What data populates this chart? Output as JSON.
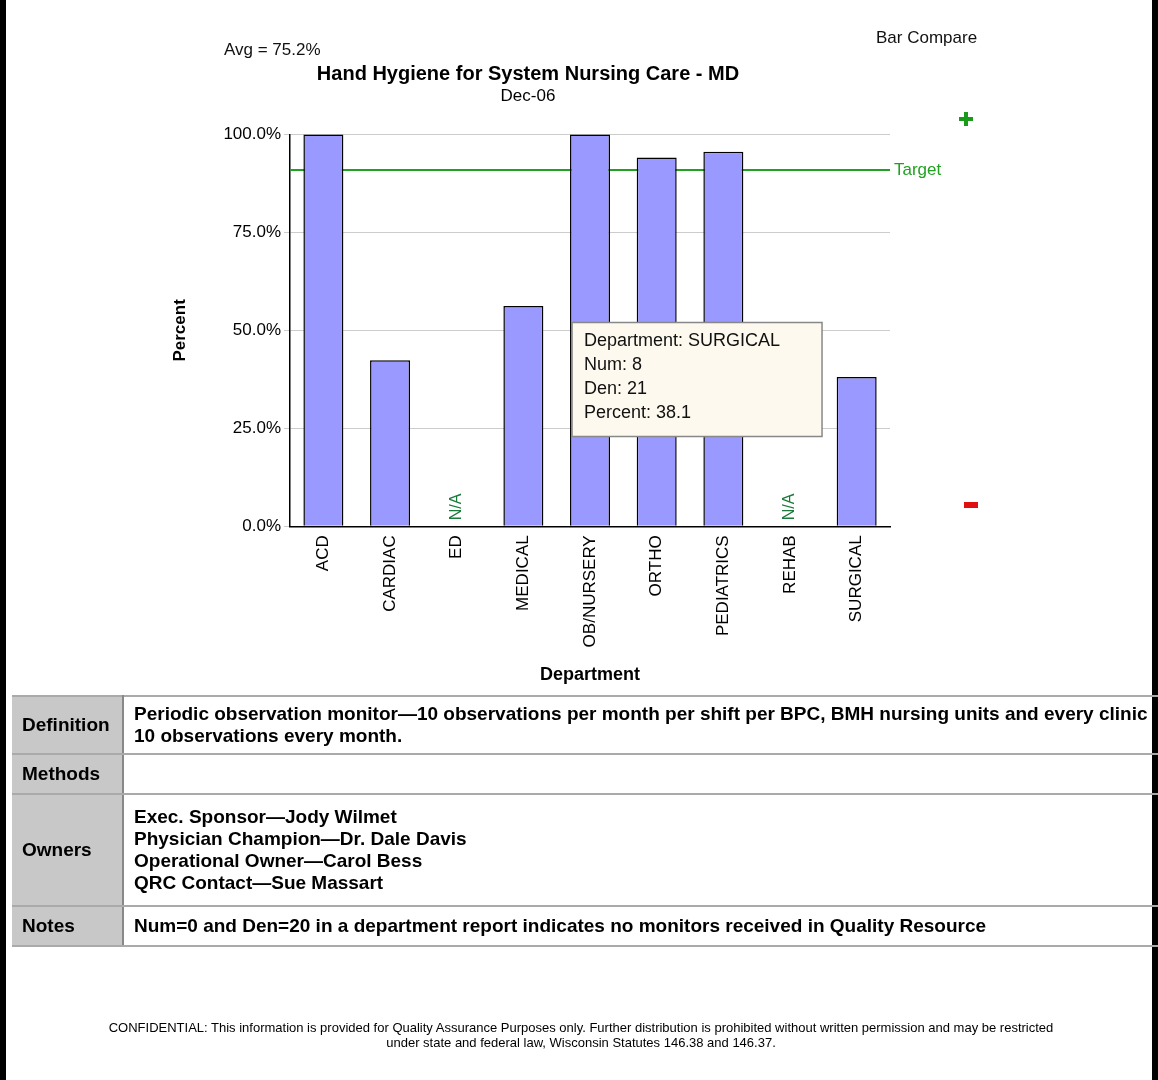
{
  "chart_data": {
    "type": "bar",
    "title": "Hand Hygiene for System Nursing Care - MD",
    "subtitle": "Dec-06",
    "xlabel": "Department",
    "ylabel": "Percent",
    "categories": [
      "ACD",
      "CARDIAC",
      "ED",
      "MEDICAL",
      "OB/NURSERY",
      "ORTHO",
      "PEDIATRICS",
      "REHAB",
      "SURGICAL"
    ],
    "values": [
      100,
      42.4,
      null,
      56.2,
      100,
      94.1,
      95.6,
      null,
      38.1
    ],
    "value_labels": [
      null,
      null,
      "N/A",
      null,
      null,
      null,
      null,
      "N/A",
      null
    ],
    "color": "#9999ff",
    "ylim": [
      0,
      100
    ],
    "yticks": [
      {
        "value": 0,
        "label": "0.0%"
      },
      {
        "value": 25,
        "label": "25.0%"
      },
      {
        "value": 50,
        "label": "50.0%"
      },
      {
        "value": 75,
        "label": "75.0%"
      },
      {
        "value": 100,
        "label": "100.0%"
      }
    ],
    "grid": "y",
    "legend": false,
    "ref_lines": [
      {
        "axis": "y",
        "value": 90.9,
        "label": "Target",
        "color": "#22a022"
      }
    ],
    "annotations": [
      "Avg = 75.2%",
      "Bar Compare",
      "Department: SURGICAL\nNum: 8\nDen: 21\nPercent: 38.1",
      "Definition",
      "Periodic observation monitor—10 observations per month per shift per BPC, BMH nursing units and every clinic 10 observations every month.",
      "Methods",
      "Owners",
      "Exec. Sponsor—Jody Wilmet\nPhysician Champion—Dr. Dale Davis\nOperational Owner—Carol Bess\nQRC Contact—Sue Massart",
      "Notes",
      "Num=0 and Den=20 in a department report indicates no monitors received in Quality Resource",
      "CONFIDENTIAL: This information is provided for Quality Assurance Purposes only. Further distribution is prohibited without written permission and may be restricted under state and federal law, Wisconsin Statutes 146.38 and 146.37."
    ]
  }
}
